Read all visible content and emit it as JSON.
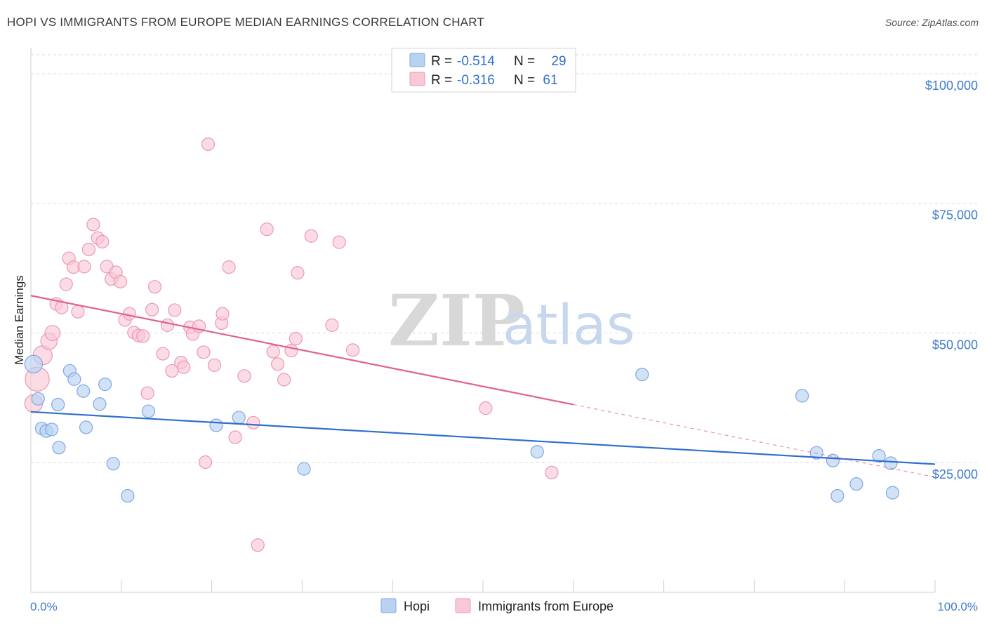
{
  "title": "HOPI VS IMMIGRANTS FROM EUROPE MEDIAN EARNINGS CORRELATION CHART",
  "source": "Source: ZipAtlas.com",
  "colors": {
    "hopi_fill": "#b8d3f2",
    "hopi_stroke": "#7ea9e2",
    "hopi_line": "#2f6fce",
    "europe_fill": "#f9c8d6",
    "europe_stroke": "#ec98b2",
    "europe_line": "#e0628e",
    "accent_text": "#3f7bd0",
    "grid": "#d9d9d9"
  },
  "legend": {
    "rows": [
      {
        "r_label": "R =",
        "r_value": "-0.514",
        "n_label": "N =",
        "n_value": "29"
      },
      {
        "r_label": "R =",
        "r_value": "-0.316",
        "n_label": "N =",
        "n_value": "61"
      }
    ]
  },
  "watermark": {
    "zip": "ZIP",
    "atlas": "atlas"
  },
  "chart_data": {
    "type": "scatter",
    "title": "HOPI VS IMMIGRANTS FROM EUROPE MEDIAN EARNINGS CORRELATION CHART",
    "xlabel": "",
    "ylabel": "Median Earnings",
    "xlim": [
      0,
      100
    ],
    "ylim": [
      0,
      105000
    ],
    "x_tick_labels": [
      "0.0%",
      "100.0%"
    ],
    "y_ticks": [
      25000,
      50000,
      75000,
      100000
    ],
    "y_tick_labels": [
      "$25,000",
      "$50,000",
      "$75,000",
      "$100,000"
    ],
    "series": [
      {
        "name": "Hopi",
        "r": -0.514,
        "n": 29,
        "trend": {
          "x": [
            0,
            100
          ],
          "y": [
            34800,
            24700
          ]
        },
        "points": [
          {
            "x": 0.3,
            "y": 44000,
            "s": 1.4
          },
          {
            "x": 0.8,
            "y": 37300,
            "s": 1
          },
          {
            "x": 1.2,
            "y": 31600,
            "s": 1
          },
          {
            "x": 1.7,
            "y": 31100,
            "s": 1
          },
          {
            "x": 2.3,
            "y": 31400,
            "s": 1
          },
          {
            "x": 3.0,
            "y": 36200,
            "s": 1
          },
          {
            "x": 3.1,
            "y": 27900,
            "s": 1
          },
          {
            "x": 4.3,
            "y": 42700,
            "s": 1
          },
          {
            "x": 4.8,
            "y": 41100,
            "s": 1
          },
          {
            "x": 5.8,
            "y": 38800,
            "s": 1
          },
          {
            "x": 6.1,
            "y": 31800,
            "s": 1
          },
          {
            "x": 7.6,
            "y": 36300,
            "s": 1
          },
          {
            "x": 8.2,
            "y": 40100,
            "s": 1
          },
          {
            "x": 9.1,
            "y": 24800,
            "s": 1
          },
          {
            "x": 10.7,
            "y": 18600,
            "s": 1
          },
          {
            "x": 13.0,
            "y": 34900,
            "s": 1
          },
          {
            "x": 20.5,
            "y": 32200,
            "s": 1
          },
          {
            "x": 23.0,
            "y": 33700,
            "s": 1
          },
          {
            "x": 30.2,
            "y": 23800,
            "s": 1
          },
          {
            "x": 56.0,
            "y": 27100,
            "s": 1
          },
          {
            "x": 67.6,
            "y": 42000,
            "s": 1
          },
          {
            "x": 85.3,
            "y": 37900,
            "s": 1
          },
          {
            "x": 86.9,
            "y": 26900,
            "s": 1
          },
          {
            "x": 88.7,
            "y": 25400,
            "s": 1
          },
          {
            "x": 89.2,
            "y": 18600,
            "s": 1
          },
          {
            "x": 91.3,
            "y": 20900,
            "s": 1
          },
          {
            "x": 93.8,
            "y": 26300,
            "s": 1
          },
          {
            "x": 95.1,
            "y": 24900,
            "s": 1
          },
          {
            "x": 95.3,
            "y": 19200,
            "s": 1
          }
        ]
      },
      {
        "name": "Immigrants from Europe",
        "r": -0.316,
        "n": 61,
        "trend": {
          "x": [
            0,
            60
          ],
          "y": [
            57200,
            36200
          ]
        },
        "trend_dashed": {
          "x": [
            60,
            100
          ],
          "y": [
            36200,
            22200
          ]
        },
        "points": [
          {
            "x": 0.3,
            "y": 36400,
            "s": 1.4
          },
          {
            "x": 0.7,
            "y": 41100,
            "s": 1.9
          },
          {
            "x": 1.3,
            "y": 45700,
            "s": 1.5
          },
          {
            "x": 2.0,
            "y": 48400,
            "s": 1.3
          },
          {
            "x": 2.4,
            "y": 50000,
            "s": 1.2
          },
          {
            "x": 2.8,
            "y": 55600,
            "s": 1
          },
          {
            "x": 3.4,
            "y": 54900,
            "s": 1
          },
          {
            "x": 3.9,
            "y": 59400,
            "s": 1
          },
          {
            "x": 4.2,
            "y": 64400,
            "s": 1
          },
          {
            "x": 4.7,
            "y": 62700,
            "s": 1
          },
          {
            "x": 5.2,
            "y": 54100,
            "s": 1
          },
          {
            "x": 5.9,
            "y": 62800,
            "s": 1
          },
          {
            "x": 6.4,
            "y": 66100,
            "s": 1
          },
          {
            "x": 6.9,
            "y": 70900,
            "s": 1
          },
          {
            "x": 7.4,
            "y": 68300,
            "s": 1
          },
          {
            "x": 7.9,
            "y": 67600,
            "s": 1
          },
          {
            "x": 8.4,
            "y": 62800,
            "s": 1
          },
          {
            "x": 8.9,
            "y": 60400,
            "s": 1
          },
          {
            "x": 9.4,
            "y": 61700,
            "s": 1
          },
          {
            "x": 9.9,
            "y": 59900,
            "s": 1
          },
          {
            "x": 10.4,
            "y": 52500,
            "s": 1
          },
          {
            "x": 10.9,
            "y": 53700,
            "s": 1
          },
          {
            "x": 11.4,
            "y": 50100,
            "s": 1
          },
          {
            "x": 11.9,
            "y": 49500,
            "s": 1
          },
          {
            "x": 12.4,
            "y": 49400,
            "s": 1
          },
          {
            "x": 12.9,
            "y": 38400,
            "s": 1
          },
          {
            "x": 13.4,
            "y": 54500,
            "s": 1
          },
          {
            "x": 13.7,
            "y": 58900,
            "s": 1
          },
          {
            "x": 14.6,
            "y": 46000,
            "s": 1
          },
          {
            "x": 15.1,
            "y": 51500,
            "s": 1
          },
          {
            "x": 15.6,
            "y": 42700,
            "s": 1
          },
          {
            "x": 15.9,
            "y": 54400,
            "s": 1
          },
          {
            "x": 16.6,
            "y": 44300,
            "s": 1
          },
          {
            "x": 16.9,
            "y": 43400,
            "s": 1
          },
          {
            "x": 17.6,
            "y": 51100,
            "s": 1
          },
          {
            "x": 17.9,
            "y": 49800,
            "s": 1
          },
          {
            "x": 18.6,
            "y": 51300,
            "s": 1
          },
          {
            "x": 19.1,
            "y": 46300,
            "s": 1
          },
          {
            "x": 19.3,
            "y": 25100,
            "s": 1
          },
          {
            "x": 19.6,
            "y": 86400,
            "s": 1
          },
          {
            "x": 20.3,
            "y": 43800,
            "s": 1
          },
          {
            "x": 21.1,
            "y": 51900,
            "s": 1
          },
          {
            "x": 21.2,
            "y": 53700,
            "s": 1
          },
          {
            "x": 21.9,
            "y": 62700,
            "s": 1
          },
          {
            "x": 22.6,
            "y": 29900,
            "s": 1
          },
          {
            "x": 23.6,
            "y": 41700,
            "s": 1
          },
          {
            "x": 24.6,
            "y": 32700,
            "s": 1
          },
          {
            "x": 25.1,
            "y": 9100,
            "s": 1
          },
          {
            "x": 26.1,
            "y": 70000,
            "s": 1
          },
          {
            "x": 26.8,
            "y": 46400,
            "s": 1
          },
          {
            "x": 27.3,
            "y": 44000,
            "s": 1
          },
          {
            "x": 28.0,
            "y": 41000,
            "s": 1
          },
          {
            "x": 28.8,
            "y": 46600,
            "s": 1
          },
          {
            "x": 29.3,
            "y": 48900,
            "s": 1
          },
          {
            "x": 29.5,
            "y": 61600,
            "s": 1
          },
          {
            "x": 31.0,
            "y": 68700,
            "s": 1
          },
          {
            "x": 33.3,
            "y": 51500,
            "s": 1
          },
          {
            "x": 34.1,
            "y": 67500,
            "s": 1
          },
          {
            "x": 35.6,
            "y": 46700,
            "s": 1
          },
          {
            "x": 50.3,
            "y": 35500,
            "s": 1
          },
          {
            "x": 57.6,
            "y": 23100,
            "s": 1
          }
        ]
      }
    ],
    "legend_position": "top-center",
    "grid": true
  }
}
